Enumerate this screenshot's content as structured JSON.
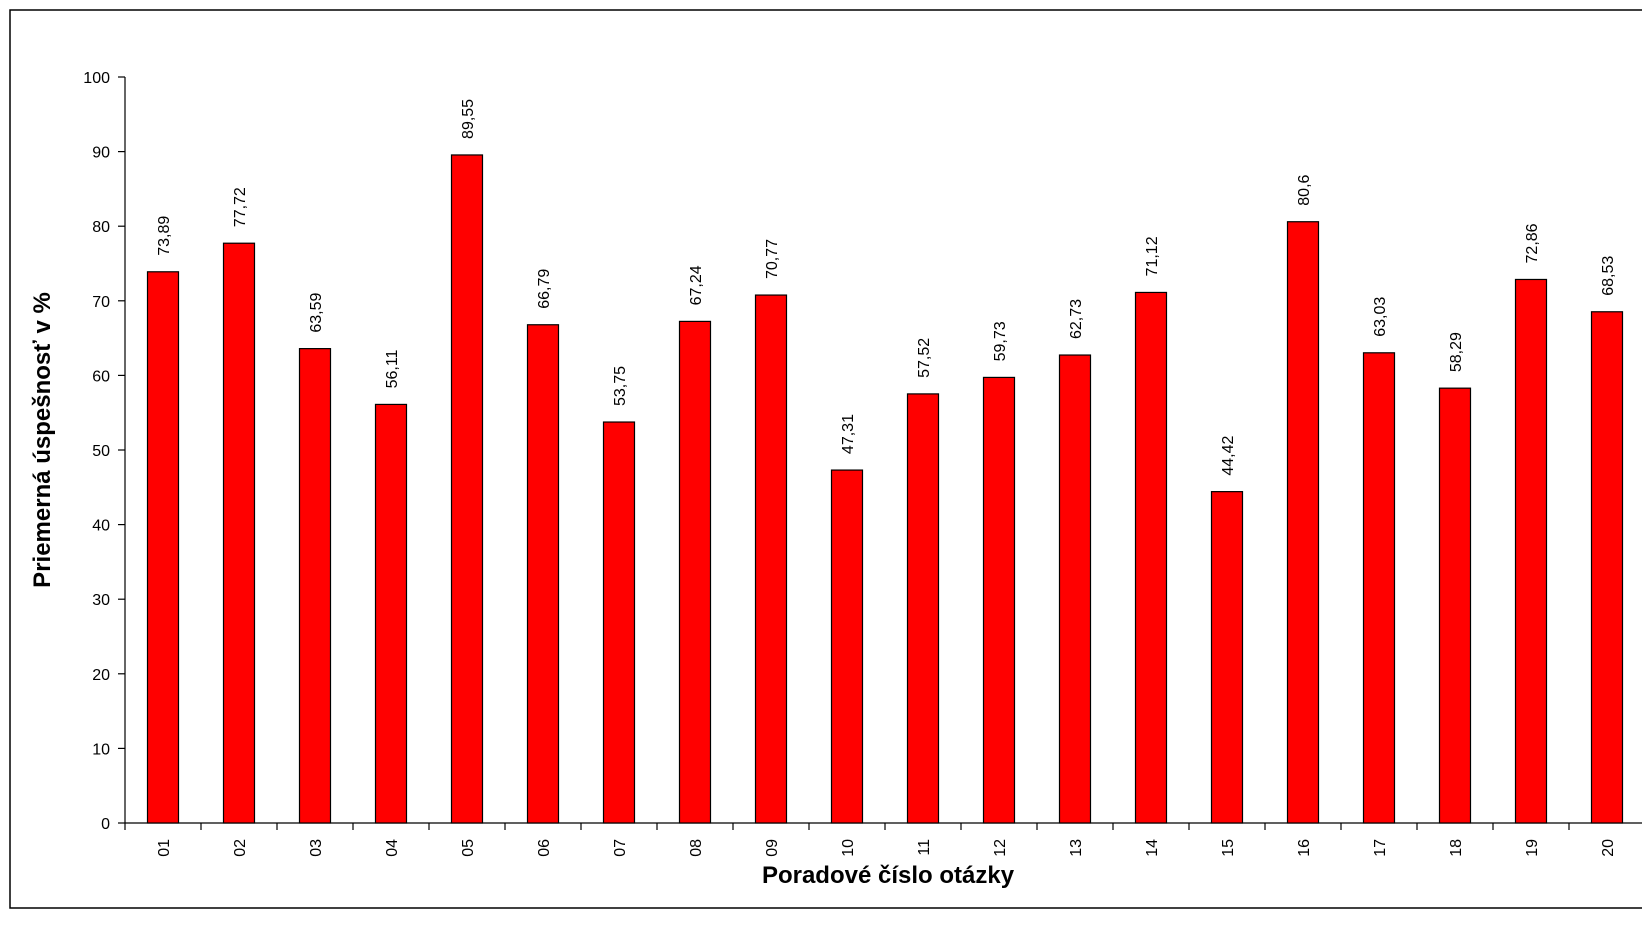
{
  "chart_data": {
    "type": "bar",
    "xlabel": "Poradové číslo otázky",
    "ylabel": "Priemerná úspešnosť v %",
    "ylim": [
      0,
      100
    ],
    "ytick_step": 10,
    "grid": false,
    "legend": "none",
    "bar_color": "#FF0000",
    "bar_edge_color": "#000000",
    "categories": [
      "01",
      "02",
      "03",
      "04",
      "05",
      "06",
      "07",
      "08",
      "09",
      "10",
      "11",
      "12",
      "13",
      "14",
      "15",
      "16",
      "17",
      "18",
      "19",
      "20"
    ],
    "values": [
      73.89,
      77.72,
      63.59,
      56.11,
      89.55,
      66.79,
      53.75,
      67.24,
      70.77,
      47.31,
      57.52,
      59.73,
      62.73,
      71.12,
      44.42,
      80.6,
      63.03,
      58.29,
      72.86,
      68.53
    ],
    "value_labels": [
      "73,89",
      "77,72",
      "63,59",
      "56,11",
      "89,55",
      "66,79",
      "53,75",
      "67,24",
      "70,77",
      "47,31",
      "57,52",
      "59,73",
      "62,73",
      "71,12",
      "44,42",
      "80,6",
      "63,03",
      "58,29",
      "72,86",
      "68,53"
    ]
  }
}
